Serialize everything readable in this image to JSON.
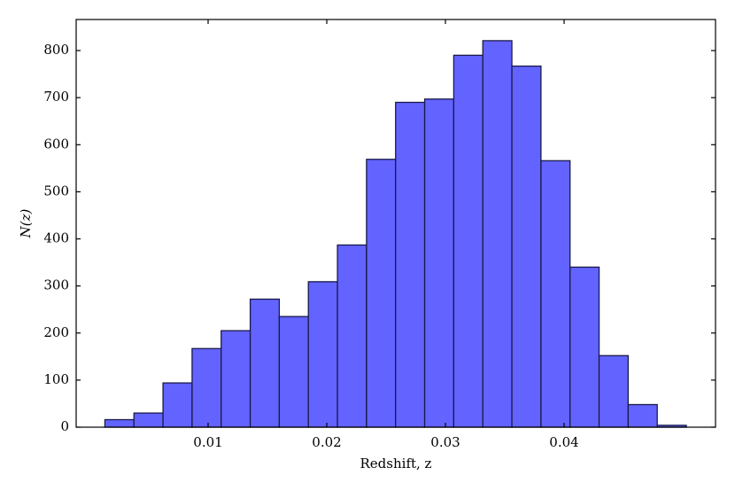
{
  "chart_data": {
    "type": "histogram",
    "x_label": "Redshift, z",
    "y_label": "N(z)",
    "bins": [
      0.0013,
      0.00375,
      0.0062,
      0.00865,
      0.0111,
      0.01355,
      0.016,
      0.01845,
      0.0209,
      0.02335,
      0.0258,
      0.02825,
      0.0307,
      0.03315,
      0.0356,
      0.03805,
      0.0405,
      0.04295,
      0.0454,
      0.04785,
      0.0503
    ],
    "values": [
      16,
      30,
      94,
      167,
      205,
      272,
      235,
      309,
      387,
      569,
      690,
      697,
      790,
      821,
      767,
      566,
      340,
      152,
      48,
      4
    ],
    "color": "#6363ff",
    "xlim": [
      -0.00112,
      0.05276
    ],
    "xticks": [
      0.01,
      0.02,
      0.03,
      0.04
    ],
    "ylim": [
      0,
      866
    ],
    "yticks": [
      0,
      100,
      200,
      300,
      400,
      500,
      600,
      700,
      800
    ]
  }
}
